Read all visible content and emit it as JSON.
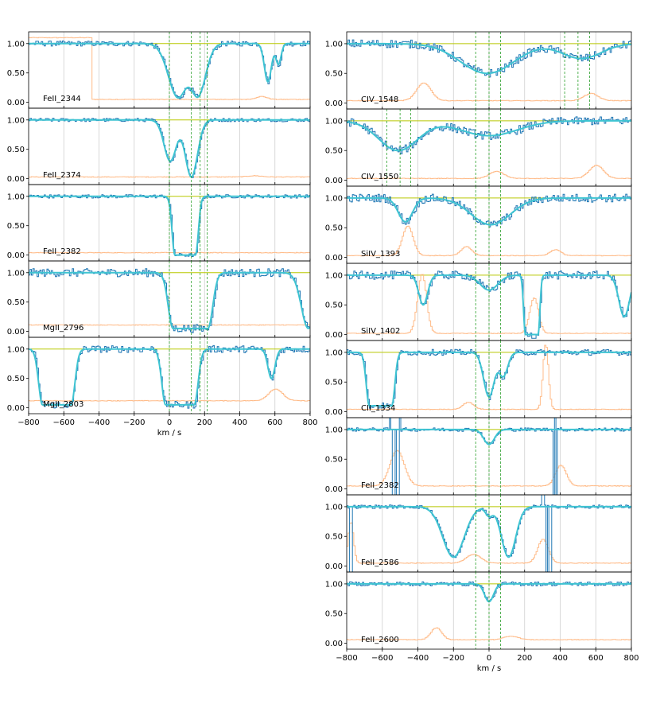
{
  "colors": {
    "data": "#1f77b4",
    "model": "#3fc4d2",
    "error": "#ffbb88",
    "continuum": "#b8c800",
    "component": "#2ca02c",
    "grid": "#d0d0d0",
    "axis": "#000000"
  },
  "chart_data": [
    {
      "type": "line",
      "panel_group": "left",
      "xlabel": "km / s",
      "xlim": [
        -800,
        800
      ],
      "xticks": [
        -800,
        -600,
        -400,
        -200,
        0,
        200,
        400,
        600,
        800
      ],
      "xtick_labels": [
        "−800",
        "−600",
        "−400",
        "−200",
        "0",
        "200",
        "400",
        "600",
        "800"
      ],
      "ylim": [
        -0.1,
        1.2
      ],
      "yticks": [
        0.0,
        0.5,
        1.0
      ],
      "ytick_labels": [
        "0.00",
        "0.50",
        "1.00"
      ],
      "component_velocities": [
        0,
        125,
        175,
        215
      ],
      "grid": "vertical",
      "panels": [
        {
          "label": "FeII_2344",
          "continuum": 1.0,
          "absorptions": [
            {
              "center": 50,
              "sigma": 55,
              "depth": 0.92
            },
            {
              "center": 160,
              "sigma": 45,
              "depth": 0.9
            },
            {
              "center": 560,
              "sigma": 20,
              "depth": 0.65
            },
            {
              "center": 620,
              "sigma": 15,
              "depth": 0.35
            }
          ],
          "noise": 0.045,
          "error_level": 0.05,
          "error_bumps": [
            {
              "from": -800,
              "to": -445,
              "level": 1.1
            },
            {
              "center": 520,
              "width": 30,
              "height": 0.05
            }
          ]
        },
        {
          "label": "FeII_2374",
          "continuum": 1.0,
          "absorptions": [
            {
              "center": 5,
              "sigma": 35,
              "depth": 0.7
            },
            {
              "center": 125,
              "sigma": 35,
              "depth": 0.97
            }
          ],
          "noise": 0.03,
          "error_level": 0.03,
          "error_bumps": [
            {
              "center": 480,
              "width": 40,
              "height": 0.02
            }
          ]
        },
        {
          "label": "FeII_2382",
          "continuum": 1.0,
          "absorptions": [
            {
              "center": 90,
              "sigma": 65,
              "depth": 1.0,
              "flat": true
            }
          ],
          "noise": 0.03,
          "error_level": 0.04,
          "error_bumps": []
        },
        {
          "label": "MgII_2796",
          "continuum": 1.0,
          "absorptions": [
            {
              "center": 120,
              "sigma": 110,
              "depth": 0.95,
              "flat": true
            },
            {
              "center": 790,
              "sigma": 40,
              "depth": 0.95
            }
          ],
          "noise": 0.07,
          "error_level": 0.11,
          "error_bumps": []
        },
        {
          "label": "MgII_2803",
          "continuum": 1.0,
          "absorptions": [
            {
              "center": -640,
              "sigma": 90,
              "depth": 0.95,
              "flat": true
            },
            {
              "center": 60,
              "sigma": 90,
              "depth": 0.95,
              "flat": true
            },
            {
              "center": 580,
              "sigma": 20,
              "depth": 0.5
            }
          ],
          "noise": 0.06,
          "error_level": 0.12,
          "error_bumps": [
            {
              "center": 600,
              "width": 40,
              "height": 0.2
            }
          ]
        }
      ]
    },
    {
      "type": "line",
      "panel_group": "right",
      "xlabel": "km / s",
      "xlim": [
        -800,
        800
      ],
      "xticks": [
        -800,
        -600,
        -400,
        -200,
        0,
        200,
        400,
        600,
        800
      ],
      "xtick_labels": [
        "−800",
        "−600",
        "−400",
        "−200",
        "0",
        "200",
        "400",
        "600",
        "800"
      ],
      "ylim": [
        -0.1,
        1.2
      ],
      "yticks": [
        0.0,
        0.5,
        1.0
      ],
      "ytick_labels": [
        "0.00",
        "0.50",
        "1.00"
      ],
      "component_velocities": [
        -75,
        0,
        65
      ],
      "grid": "vertical",
      "panels": [
        {
          "label": "CIV_1548",
          "continuum": 1.0,
          "absorptions": [
            {
              "center": -10,
              "sigma": 150,
              "depth": 0.5
            },
            {
              "center": 520,
              "sigma": 110,
              "depth": 0.25
            }
          ],
          "extra_lines": [
            -75,
            0,
            65,
            425,
            500,
            565
          ],
          "noise": 0.07,
          "error_level": 0.04,
          "error_bumps": [
            {
              "center": -370,
              "width": 40,
              "height": 0.3
            },
            {
              "center": 570,
              "width": 40,
              "height": 0.12
            }
          ]
        },
        {
          "label": "CIV_1550",
          "continuum": 1.0,
          "absorptions": [
            {
              "center": -510,
              "sigma": 110,
              "depth": 0.5
            },
            {
              "center": 0,
              "sigma": 160,
              "depth": 0.25
            }
          ],
          "extra_lines": [
            -575,
            -500,
            -440,
            -75,
            0,
            65
          ],
          "noise": 0.07,
          "error_level": 0.03,
          "error_bumps": [
            {
              "center": 40,
              "width": 40,
              "height": 0.12
            },
            {
              "center": 600,
              "width": 40,
              "height": 0.22
            }
          ]
        },
        {
          "label": "SiIV_1393",
          "continuum": 1.0,
          "absorptions": [
            {
              "center": 10,
              "sigma": 110,
              "depth": 0.45
            },
            {
              "center": -470,
              "sigma": 40,
              "depth": 0.4
            }
          ],
          "noise": 0.07,
          "error_level": 0.03,
          "error_bumps": [
            {
              "center": -460,
              "width": 30,
              "height": 0.5
            },
            {
              "center": -130,
              "width": 30,
              "height": 0.15
            },
            {
              "center": 370,
              "width": 30,
              "height": 0.1
            }
          ]
        },
        {
          "label": "SiIV_1402",
          "continuum": 1.0,
          "absorptions": [
            {
              "center": 0,
              "sigma": 50,
              "depth": 0.25
            },
            {
              "center": 240,
              "sigma": 40,
              "depth": 1.0,
              "flat": true
            },
            {
              "center": -370,
              "sigma": 25,
              "depth": 0.5
            },
            {
              "center": 760,
              "sigma": 30,
              "depth": 0.7
            }
          ],
          "noise": 0.07,
          "error_level": 0.02,
          "error_bumps": [
            {
              "center": -380,
              "width": 25,
              "height": 1.0
            },
            {
              "center": 250,
              "width": 25,
              "height": 0.6
            }
          ]
        },
        {
          "label": "CII_1334",
          "continuum": 1.0,
          "absorptions": [
            {
              "center": -610,
              "sigma": 70,
              "depth": 0.9,
              "flat": true
            },
            {
              "center": 0,
              "sigma": 30,
              "depth": 0.75
            },
            {
              "center": 80,
              "sigma": 25,
              "depth": 0.4
            }
          ],
          "noise": 0.05,
          "error_level": 0.04,
          "error_bumps": [
            {
              "center": 315,
              "width": 15,
              "height": 1.1
            },
            {
              "center": -120,
              "width": 30,
              "height": 0.12
            }
          ]
        },
        {
          "label": "FeII_2382",
          "continuum": 1.0,
          "absorptions": [
            {
              "center": 0,
              "sigma": 30,
              "depth": 0.25
            }
          ],
          "spikes": [
            -560,
            -540,
            -520,
            -510,
            360,
            370
          ],
          "noise": 0.03,
          "error_level": 0.05,
          "error_bumps": [
            {
              "center": -520,
              "width": 40,
              "height": 0.6
            },
            {
              "center": 400,
              "width": 30,
              "height": 0.35
            }
          ]
        },
        {
          "label": "FeII_2586",
          "continuum": 1.0,
          "absorptions": [
            {
              "center": 0,
              "sigma": 20,
              "depth": 0.15
            },
            {
              "center": -200,
              "sigma": 60,
              "depth": 0.85
            },
            {
              "center": 110,
              "sigma": 40,
              "depth": 0.85
            }
          ],
          "spikes": [
            -780,
            300,
            320,
            340
          ],
          "noise": 0.03,
          "error_level": 0.05,
          "error_bumps": [
            {
              "center": -780,
              "width": 15,
              "height": 0.7
            },
            {
              "center": -90,
              "width": 40,
              "height": 0.15
            },
            {
              "center": 300,
              "width": 30,
              "height": 0.4
            }
          ]
        },
        {
          "label": "FeII_2600",
          "continuum": 1.0,
          "absorptions": [
            {
              "center": 0,
              "sigma": 25,
              "depth": 0.3
            }
          ],
          "noise": 0.035,
          "error_level": 0.06,
          "error_bumps": [
            {
              "center": -300,
              "width": 30,
              "height": 0.2
            },
            {
              "center": 120,
              "width": 40,
              "height": 0.06
            }
          ]
        }
      ]
    }
  ]
}
